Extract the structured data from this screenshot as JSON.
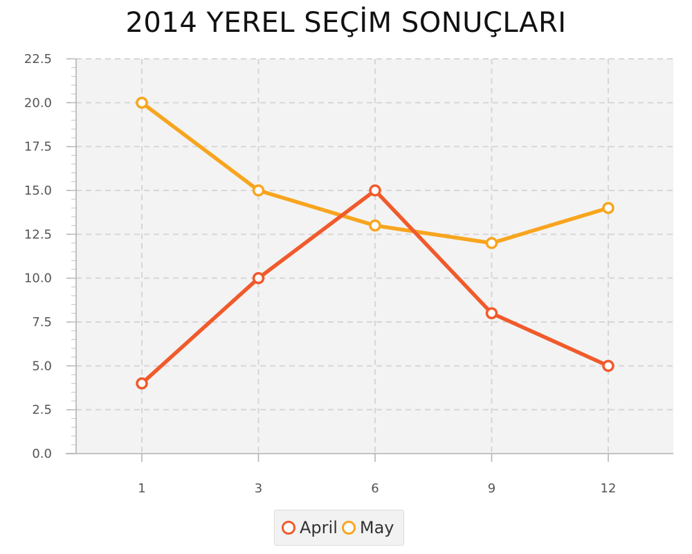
{
  "chart_data": {
    "type": "line",
    "title": "2014 YEREL SEÇİM SONUÇLARI",
    "xlabel": "",
    "ylabel": "",
    "categories": [
      "1",
      "3",
      "6",
      "9",
      "12"
    ],
    "ylim": [
      0,
      22.5
    ],
    "yticks": [
      "0.0",
      "2.5",
      "5.0",
      "7.5",
      "10.0",
      "12.5",
      "15.0",
      "17.5",
      "20.0",
      "22.5"
    ],
    "grid": true,
    "legend_position": "bottom-center",
    "series": [
      {
        "name": "April",
        "color": "#f15a2b",
        "values": [
          4,
          10,
          15,
          8,
          5
        ]
      },
      {
        "name": "May",
        "color": "#f8a51e",
        "values": [
          20,
          15,
          13,
          12,
          14
        ]
      }
    ]
  }
}
